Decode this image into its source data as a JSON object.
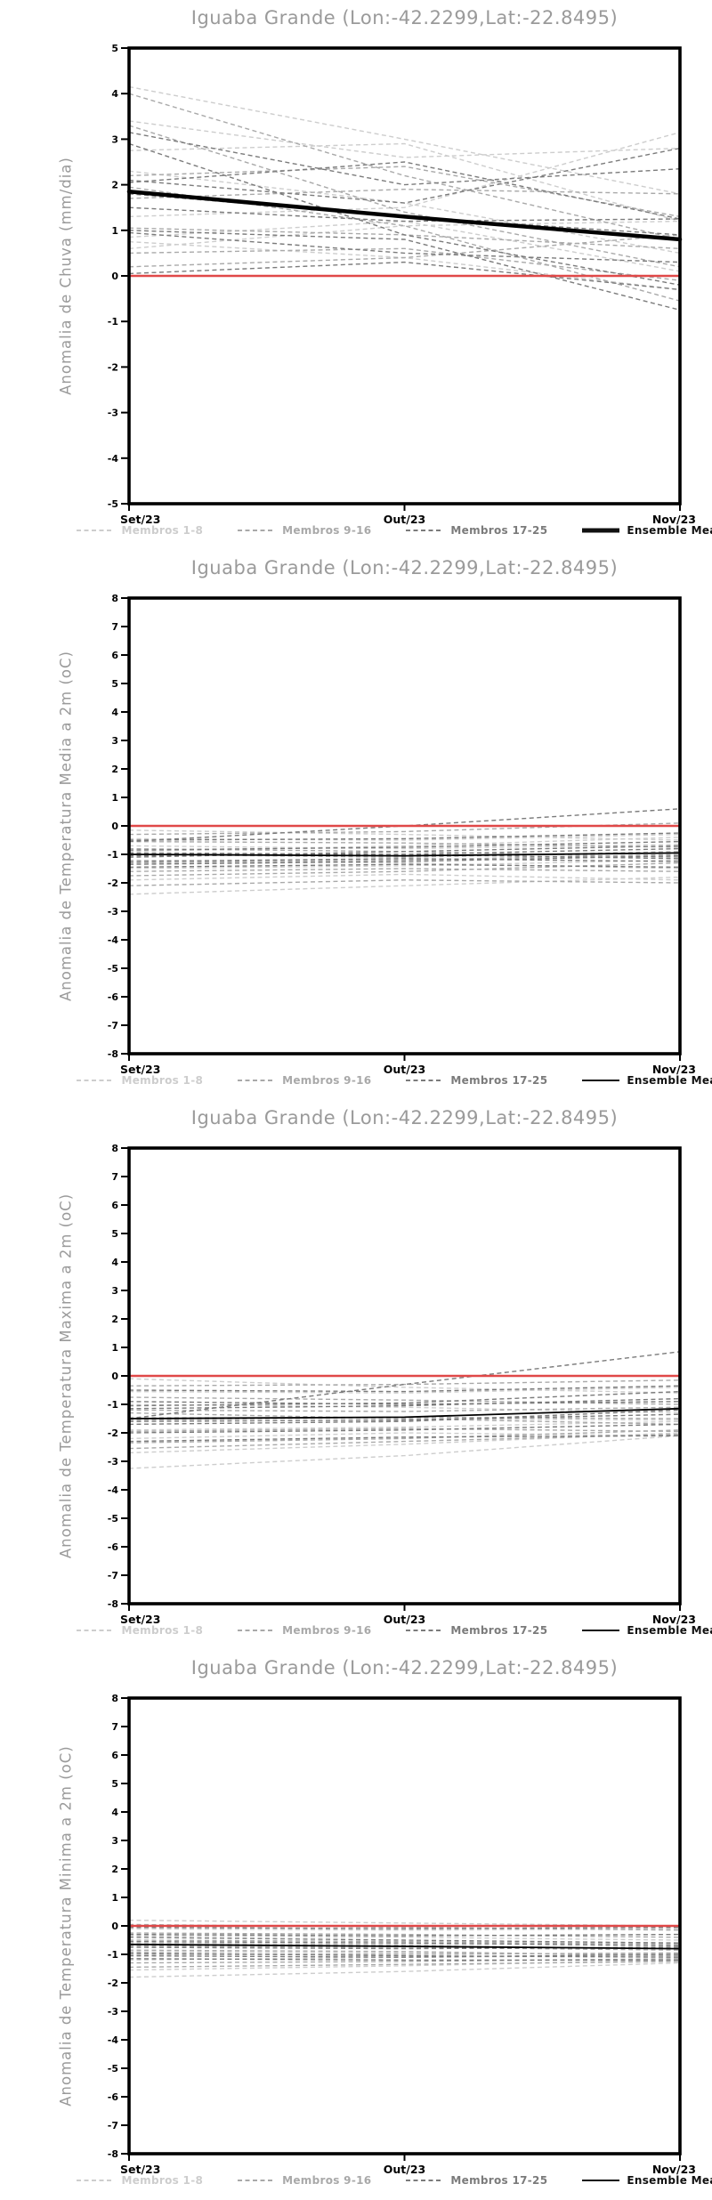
{
  "page": {
    "background": "#ffffff",
    "axis_color": "#000000",
    "title_color": "#9a9a9a"
  },
  "legend_labels": [
    "Membros 1-8",
    "Membros 9-16",
    "Membros 17-25",
    "Ensemble Mean"
  ],
  "chart_data": [
    {
      "type": "line",
      "title": "Iguaba Grande (Lon:-42.2299,Lat:-22.8495)",
      "ylabel": "Anomalia de Chuva (mm/dia)",
      "x_labels": [
        "Set/23",
        "Out/23",
        "Nov/23"
      ],
      "ylim": [
        -5,
        5
      ],
      "ytick_step": 1,
      "grid": false,
      "legend_position": "bottom",
      "mean_linewidth": 4.5,
      "groups": [
        {
          "name": "Membros 1-8",
          "color": "#cdcdcd",
          "members": [
            [
              4.15,
              3.0,
              1.8
            ],
            [
              3.4,
              2.6,
              2.8
            ],
            [
              2.75,
              2.9,
              1.2
            ],
            [
              2.3,
              1.6,
              0.5
            ],
            [
              1.3,
              1.5,
              3.15
            ],
            [
              0.85,
              1.2,
              0.1
            ],
            [
              0.75,
              0.4,
              -0.3
            ],
            [
              0.6,
              1.1,
              1.2
            ]
          ]
        },
        {
          "name": "Membros 9-16",
          "color": "#a9a9a9",
          "members": [
            [
              4.0,
              2.2,
              0.8
            ],
            [
              3.3,
              1.4,
              0.2
            ],
            [
              2.2,
              2.4,
              1.3
            ],
            [
              1.95,
              1.1,
              -0.55
            ],
            [
              1.7,
              1.9,
              1.8
            ],
            [
              1.05,
              0.9,
              0.6
            ],
            [
              0.5,
              0.6,
              -0.1
            ],
            [
              0.2,
              0.4,
              0.9
            ]
          ]
        },
        {
          "name": "Membros 17-25",
          "color": "#7b7b7b",
          "members": [
            [
              3.15,
              2.0,
              2.35
            ],
            [
              2.9,
              0.9,
              -0.2
            ],
            [
              2.1,
              1.6,
              2.8
            ],
            [
              2.05,
              2.5,
              1.25
            ],
            [
              1.8,
              1.3,
              0.9
            ],
            [
              1.5,
              1.2,
              1.25
            ],
            [
              1.0,
              0.8,
              -0.75
            ],
            [
              0.95,
              0.5,
              0.3
            ],
            [
              0.05,
              0.3,
              -0.3
            ]
          ]
        }
      ],
      "zero_line": {
        "color": "#e04848",
        "values": [
          0,
          0,
          0
        ]
      },
      "ensemble_mean": {
        "name": "Ensemble Mean",
        "color": "#000000",
        "values": [
          1.85,
          1.3,
          0.8
        ]
      }
    },
    {
      "type": "line",
      "title": "Iguaba Grande (Lon:-42.2299,Lat:-22.8495)",
      "ylabel": "Anomalia de Temperatura Media a 2m (oC)",
      "x_labels": [
        "Set/23",
        "Out/23",
        "Nov/23"
      ],
      "ylim": [
        -8,
        8
      ],
      "ytick_step": 1,
      "grid": false,
      "legend_position": "bottom",
      "mean_linewidth": 1.8,
      "groups": [
        {
          "name": "Membros 1-8",
          "color": "#cdcdcd",
          "members": [
            [
              -0.15,
              -0.3,
              -0.5
            ],
            [
              -0.45,
              -0.5,
              -0.3
            ],
            [
              -0.7,
              -0.8,
              -0.65
            ],
            [
              -0.9,
              -0.7,
              -0.4
            ],
            [
              -1.2,
              -1.3,
              -1.5
            ],
            [
              -1.5,
              -1.4,
              -1.2
            ],
            [
              -1.9,
              -1.7,
              -1.9
            ],
            [
              -2.4,
              -2.1,
              -1.8
            ]
          ]
        },
        {
          "name": "Membros 9-16",
          "color": "#a9a9a9",
          "members": [
            [
              -0.3,
              -0.2,
              0.1
            ],
            [
              -0.55,
              -0.6,
              -0.75
            ],
            [
              -0.8,
              -0.9,
              -1.1
            ],
            [
              -1.0,
              -1.1,
              -0.9
            ],
            [
              -1.3,
              -1.2,
              -1.0
            ],
            [
              -1.6,
              -1.5,
              -1.6
            ],
            [
              -1.75,
              -1.6,
              -1.3
            ],
            [
              -2.1,
              -1.9,
              -2.0
            ]
          ]
        },
        {
          "name": "Membros 17-25",
          "color": "#7b7b7b",
          "members": [
            [
              -0.55,
              0.0,
              0.6
            ],
            [
              -0.5,
              -0.45,
              -0.25
            ],
            [
              -0.85,
              -0.75,
              -0.55
            ],
            [
              -1.05,
              -1.0,
              -1.15
            ],
            [
              -1.25,
              -1.15,
              -1.25
            ],
            [
              -1.45,
              -1.35,
              -1.45
            ],
            [
              -1.1,
              -0.9,
              -0.7
            ],
            [
              -0.95,
              -1.0,
              -0.8
            ],
            [
              -1.35,
              -1.25,
              -1.05
            ]
          ]
        }
      ],
      "zero_line": {
        "color": "#e04848",
        "values": [
          0,
          0,
          0
        ]
      },
      "ensemble_mean": {
        "name": "Ensemble Mean",
        "color": "#000000",
        "values": [
          -1.0,
          -1.05,
          -0.95
        ]
      }
    },
    {
      "type": "line",
      "title": "Iguaba Grande (Lon:-42.2299,Lat:-22.8495)",
      "ylabel": "Anomalia de Temperatura Maxima a 2m (oC)",
      "x_labels": [
        "Set/23",
        "Out/23",
        "Nov/23"
      ],
      "ylim": [
        -8,
        8
      ],
      "ytick_step": 1,
      "grid": false,
      "legend_position": "bottom",
      "mean_linewidth": 1.8,
      "groups": [
        {
          "name": "Membros 1-8",
          "color": "#cdcdcd",
          "members": [
            [
              -0.1,
              -0.4,
              -0.6
            ],
            [
              -0.55,
              -0.6,
              -0.4
            ],
            [
              -1.0,
              -1.1,
              -1.3
            ],
            [
              -1.45,
              -1.5,
              -1.55
            ],
            [
              -1.9,
              -1.8,
              -1.6
            ],
            [
              -2.2,
              -2.0,
              -2.1
            ],
            [
              -2.7,
              -2.4,
              -2.0
            ],
            [
              -3.25,
              -2.8,
              -2.1
            ]
          ]
        },
        {
          "name": "Membros 9-16",
          "color": "#a9a9a9",
          "members": [
            [
              -0.35,
              -0.3,
              -0.15
            ],
            [
              -0.75,
              -0.85,
              -1.0
            ],
            [
              -1.2,
              -1.25,
              -1.1
            ],
            [
              -1.55,
              -1.45,
              -1.5
            ],
            [
              -1.95,
              -1.85,
              -1.95
            ],
            [
              -2.35,
              -2.2,
              -1.9
            ],
            [
              -1.3,
              -1.5,
              -1.7
            ],
            [
              -2.55,
              -2.3,
              -2.05
            ]
          ]
        },
        {
          "name": "Membros 17-25",
          "color": "#7b7b7b",
          "members": [
            [
              -1.5,
              -0.3,
              0.85
            ],
            [
              -0.5,
              -0.55,
              -0.35
            ],
            [
              -0.9,
              -1.0,
              -0.9
            ],
            [
              -1.15,
              -1.05,
              -0.8
            ],
            [
              -1.6,
              -1.55,
              -1.35
            ],
            [
              -2.0,
              -1.9,
              -1.7
            ],
            [
              -2.3,
              -2.15,
              -2.1
            ],
            [
              -1.05,
              -0.95,
              -0.55
            ],
            [
              -1.7,
              -1.6,
              -1.2
            ]
          ]
        }
      ],
      "zero_line": {
        "color": "#e04848",
        "values": [
          0,
          0,
          0
        ]
      },
      "ensemble_mean": {
        "name": "Ensemble Mean",
        "color": "#000000",
        "values": [
          -1.5,
          -1.45,
          -1.15
        ]
      }
    },
    {
      "type": "line",
      "title": "Iguaba Grande (Lon:-42.2299,Lat:-22.8495)",
      "ylabel": "Anomalia de Temperatura Minima a 2m (oC)",
      "x_labels": [
        "Set/23",
        "Out/23",
        "Nov/23"
      ],
      "ylim": [
        -8,
        8
      ],
      "ytick_step": 1,
      "grid": false,
      "legend_position": "bottom",
      "mean_linewidth": 1.8,
      "groups": [
        {
          "name": "Membros 1-8",
          "color": "#cdcdcd",
          "members": [
            [
              0.2,
              0.1,
              0.0
            ],
            [
              -0.1,
              -0.15,
              -0.1
            ],
            [
              -0.35,
              -0.4,
              -0.5
            ],
            [
              -0.6,
              -0.65,
              -0.6
            ],
            [
              -0.9,
              -0.95,
              -1.0
            ],
            [
              -1.2,
              -1.1,
              -1.05
            ],
            [
              -1.55,
              -1.4,
              -1.2
            ],
            [
              -1.8,
              -1.6,
              -1.3
            ]
          ]
        },
        {
          "name": "Membros 9-16",
          "color": "#a9a9a9",
          "members": [
            [
              0.05,
              -0.05,
              -0.15
            ],
            [
              -0.25,
              -0.3,
              -0.4
            ],
            [
              -0.5,
              -0.55,
              -0.65
            ],
            [
              -0.7,
              -0.75,
              -0.85
            ],
            [
              -1.0,
              -1.0,
              -0.95
            ],
            [
              -1.3,
              -1.25,
              -1.15
            ],
            [
              -0.85,
              -0.9,
              -1.05
            ],
            [
              -1.45,
              -1.35,
              -1.25
            ]
          ]
        },
        {
          "name": "Membros 17-25",
          "color": "#7b7b7b",
          "members": [
            [
              -0.05,
              -0.1,
              -0.05
            ],
            [
              -0.3,
              -0.35,
              -0.3
            ],
            [
              -0.55,
              -0.6,
              -0.7
            ],
            [
              -0.75,
              -0.8,
              -0.75
            ],
            [
              -0.95,
              -1.05,
              -1.1
            ],
            [
              -1.15,
              -1.2,
              -1.2
            ],
            [
              -0.4,
              -0.5,
              -0.6
            ],
            [
              -0.65,
              -0.7,
              -0.8
            ],
            [
              -1.05,
              -1.1,
              -1.0
            ]
          ]
        }
      ],
      "zero_line": {
        "color": "#e04848",
        "values": [
          0,
          0,
          0
        ]
      },
      "ensemble_mean": {
        "name": "Ensemble Mean",
        "color": "#000000",
        "values": [
          -0.65,
          -0.72,
          -0.8
        ]
      }
    }
  ]
}
